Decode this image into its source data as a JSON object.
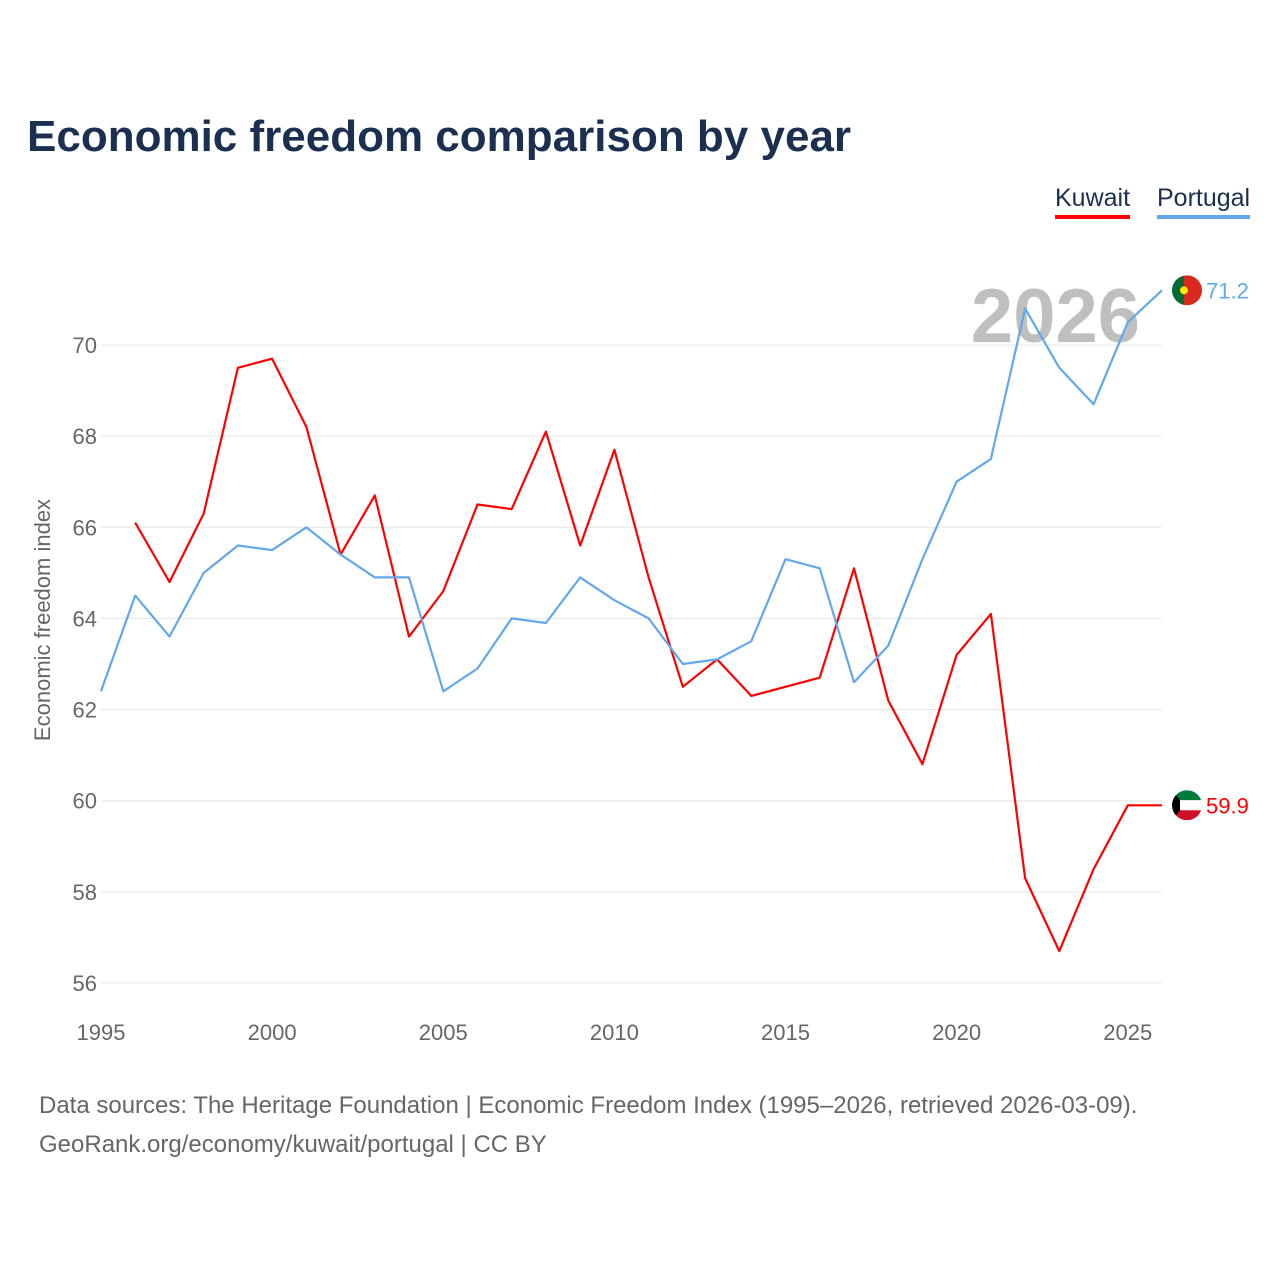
{
  "chart_data": {
    "type": "line",
    "title": "Economic freedom comparison by year",
    "xlabel": "",
    "ylabel": "Economic freedom index",
    "xlim": [
      1995,
      2026
    ],
    "ylim": [
      55.5,
      72
    ],
    "yticks": [
      56,
      58,
      60,
      62,
      64,
      66,
      68,
      70
    ],
    "xticks": [
      1995,
      2000,
      2005,
      2010,
      2015,
      2020,
      2025
    ],
    "grid": true,
    "legend_position": "top-right",
    "watermark_year": "2026",
    "series": [
      {
        "name": "Kuwait",
        "color": "#ff0000",
        "end_label": "59.9",
        "x": [
          1996,
          1997,
          1998,
          1999,
          2000,
          2001,
          2002,
          2003,
          2004,
          2005,
          2006,
          2007,
          2008,
          2009,
          2010,
          2011,
          2012,
          2013,
          2014,
          2015,
          2016,
          2017,
          2018,
          2019,
          2020,
          2021,
          2022,
          2023,
          2024,
          2025,
          2026
        ],
        "values": [
          66.1,
          64.8,
          66.3,
          69.5,
          69.7,
          68.2,
          65.4,
          66.7,
          63.6,
          64.6,
          66.5,
          66.4,
          68.1,
          65.6,
          67.7,
          64.9,
          62.5,
          63.1,
          62.3,
          62.5,
          62.7,
          65.1,
          62.2,
          60.8,
          63.2,
          64.1,
          58.3,
          56.7,
          58.5,
          59.9,
          59.9
        ]
      },
      {
        "name": "Portugal",
        "color": "#62a8ea",
        "end_label": "71.2",
        "x": [
          1995,
          1996,
          1997,
          1998,
          1999,
          2000,
          2001,
          2002,
          2003,
          2004,
          2005,
          2006,
          2007,
          2008,
          2009,
          2010,
          2011,
          2012,
          2013,
          2014,
          2015,
          2016,
          2017,
          2018,
          2019,
          2020,
          2021,
          2022,
          2023,
          2024,
          2025,
          2026
        ],
        "values": [
          62.4,
          64.5,
          63.6,
          65.0,
          65.6,
          65.5,
          66.0,
          65.4,
          64.9,
          64.9,
          62.4,
          62.9,
          64.0,
          63.9,
          64.9,
          64.4,
          64.0,
          63.0,
          63.1,
          63.5,
          65.3,
          65.1,
          62.6,
          63.4,
          65.3,
          67.0,
          67.5,
          70.8,
          69.5,
          68.7,
          70.5,
          71.2
        ]
      }
    ]
  },
  "footer": {
    "line1": "Data sources: The Heritage Foundation | Economic Freedom Index (1995–2026, retrieved 2026-03-09).",
    "line2": "GeoRank.org/economy/kuwait/portugal | CC BY"
  }
}
